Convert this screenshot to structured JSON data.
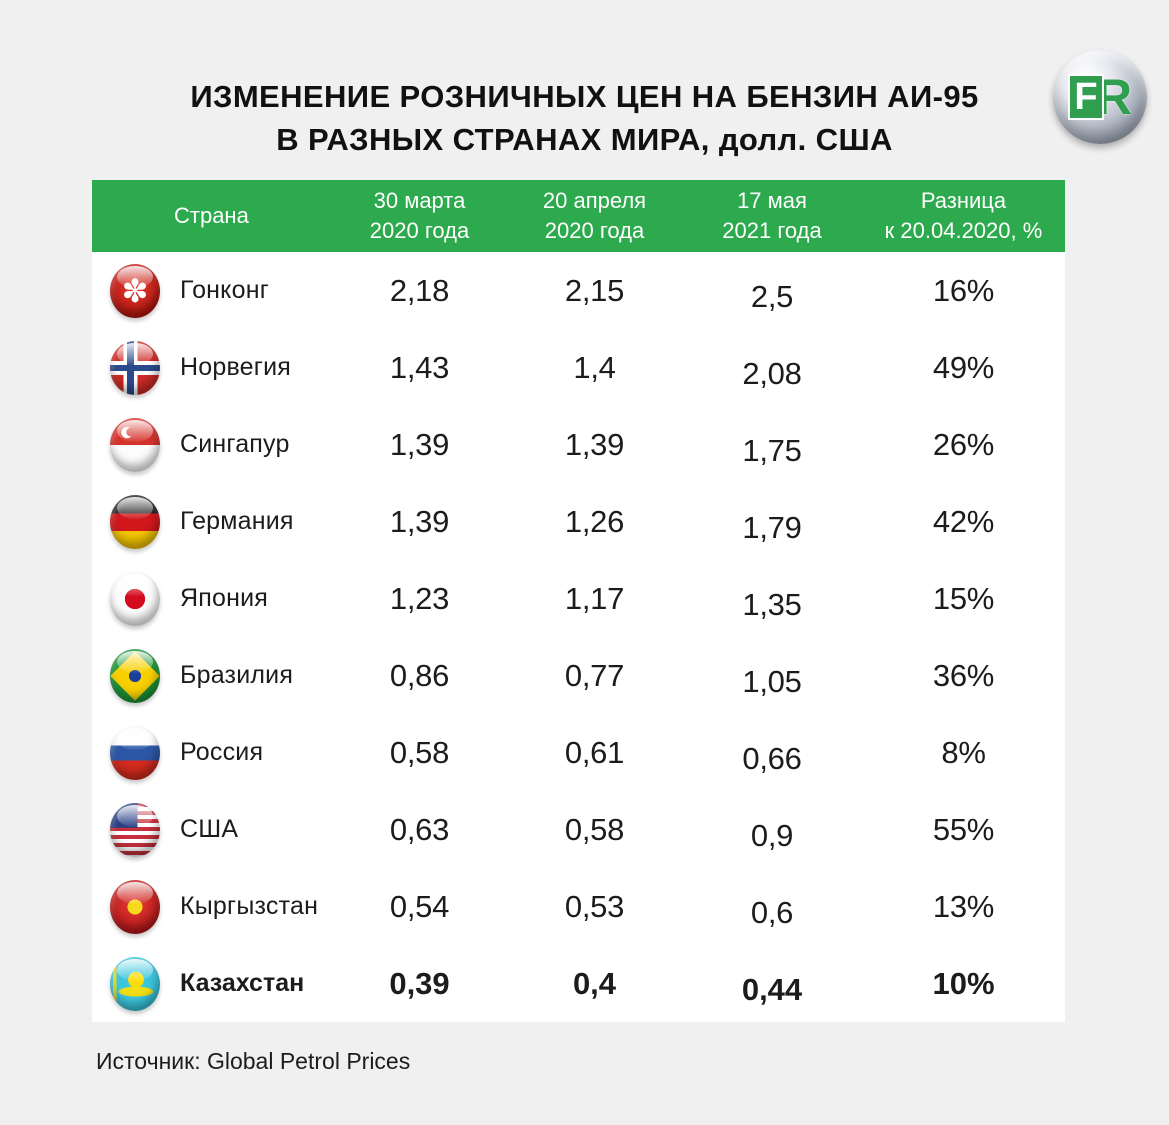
{
  "title": {
    "line1": "ИЗМЕНЕНИЕ РОЗНИЧНЫХ ЦЕН НА БЕНЗИН АИ-95",
    "line2": "В РАЗНЫХ СТРАНАХ МИРА, долл. США"
  },
  "logo": {
    "f": "F",
    "r": "R"
  },
  "colors": {
    "header_green": "#2daa4d",
    "page_bg": "#f0f0f0",
    "table_bg": "#ffffff",
    "text": "#1c1c1c",
    "logo_green": "#2f9e4f"
  },
  "table": {
    "columns": [
      {
        "label": "Страна"
      },
      {
        "line1": "30 марта",
        "line2": "2020 года"
      },
      {
        "line1": "20 апреля",
        "line2": "2020 года"
      },
      {
        "line1": "17 мая",
        "line2": "2021 года"
      },
      {
        "line1": "Разница",
        "line2": "к 20.04.2020, %"
      }
    ],
    "rows": [
      {
        "flag": "hong-kong-flag",
        "country": "Гонконг",
        "mar30_2020": "2,18",
        "apr20_2020": "2,15",
        "may17_2021": "2,5",
        "diff": "16%"
      },
      {
        "flag": "norway-flag",
        "country": "Норвегия",
        "mar30_2020": "1,43",
        "apr20_2020": "1,4",
        "may17_2021": "2,08",
        "diff": "49%"
      },
      {
        "flag": "singapore-flag",
        "country": "Сингапур",
        "mar30_2020": "1,39",
        "apr20_2020": "1,39",
        "may17_2021": "1,75",
        "diff": "26%"
      },
      {
        "flag": "germany-flag",
        "country": "Германия",
        "mar30_2020": "1,39",
        "apr20_2020": "1,26",
        "may17_2021": "1,79",
        "diff": "42%"
      },
      {
        "flag": "japan-flag",
        "country": "Япония",
        "mar30_2020": "1,23",
        "apr20_2020": "1,17",
        "may17_2021": "1,35",
        "diff": "15%"
      },
      {
        "flag": "brazil-flag",
        "country": "Бразилия",
        "mar30_2020": "0,86",
        "apr20_2020": "0,77",
        "may17_2021": "1,05",
        "diff": "36%"
      },
      {
        "flag": "russia-flag",
        "country": "Россия",
        "mar30_2020": "0,58",
        "apr20_2020": "0,61",
        "may17_2021": "0,66",
        "diff": "8%"
      },
      {
        "flag": "usa-flag",
        "country": "США",
        "mar30_2020": "0,63",
        "apr20_2020": "0,58",
        "may17_2021": "0,9",
        "diff": "55%"
      },
      {
        "flag": "kyrgyzstan-flag",
        "country": "Кыргызстан",
        "mar30_2020": "0,54",
        "apr20_2020": "0,53",
        "may17_2021": "0,6",
        "diff": "13%"
      },
      {
        "flag": "kazakhstan-flag",
        "country": "Казахстан",
        "mar30_2020": "0,39",
        "apr20_2020": "0,4",
        "may17_2021": "0,44",
        "diff": "10%"
      }
    ]
  },
  "footer": {
    "source": "Источник: Global Petrol Prices"
  },
  "chart_data": {
    "type": "table",
    "title": "ИЗМЕНЕНИЕ РОЗНИЧНЫХ ЦЕН НА БЕНЗИН АИ-95 В РАЗНЫХ СТРАНАХ МИРА, долл. США",
    "columns": [
      "Страна",
      "30 марта 2020 года",
      "20 апреля 2020 года",
      "17 мая 2021 года",
      "Разница к 20.04.2020, %"
    ],
    "rows": [
      [
        "Гонконг",
        2.18,
        2.15,
        2.5,
        "16%"
      ],
      [
        "Норвегия",
        1.43,
        1.4,
        2.08,
        "49%"
      ],
      [
        "Сингапур",
        1.39,
        1.39,
        1.75,
        "26%"
      ],
      [
        "Германия",
        1.39,
        1.26,
        1.79,
        "42%"
      ],
      [
        "Япония",
        1.23,
        1.17,
        1.35,
        "15%"
      ],
      [
        "Бразилия",
        0.86,
        0.77,
        1.05,
        "36%"
      ],
      [
        "Россия",
        0.58,
        0.61,
        0.66,
        "8%"
      ],
      [
        "США",
        0.63,
        0.58,
        0.9,
        "55%"
      ],
      [
        "Кыргызстан",
        0.54,
        0.53,
        0.6,
        "13%"
      ],
      [
        "Казахстан",
        0.39,
        0.4,
        0.44,
        "10%"
      ]
    ],
    "highlighted_row": "Казахстан",
    "units": "долл. США",
    "source": "Global Petrol Prices"
  }
}
